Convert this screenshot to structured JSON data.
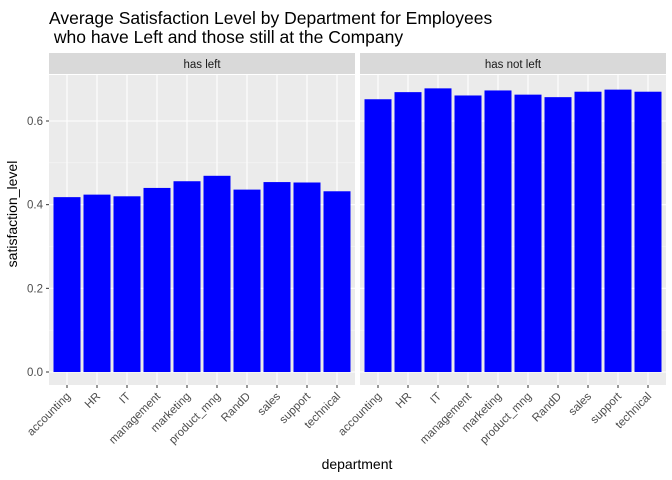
{
  "chart_data": {
    "type": "bar",
    "title": [
      "Average Satisfaction Level by Department for Employees",
      " who have Left and those still at the Company"
    ],
    "xlabel": "department",
    "ylabel": "satisfaction_level",
    "ylim": [
      0,
      0.7
    ],
    "yticks": [
      "0.0",
      "0.2",
      "0.4",
      "0.6"
    ],
    "grid": true,
    "bar_color": "#0000ff",
    "panel_background": "#ebebeb",
    "strip_background": "#d9d9d9",
    "categories": [
      "accounting",
      "HR",
      "IT",
      "management",
      "marketing",
      "product_mng",
      "RandD",
      "sales",
      "support",
      "technical"
    ],
    "panels": [
      {
        "label": "has left",
        "values": [
          0.418,
          0.424,
          0.42,
          0.44,
          0.456,
          0.469,
          0.436,
          0.454,
          0.453,
          0.432
        ]
      },
      {
        "label": "has not left",
        "values": [
          0.652,
          0.669,
          0.678,
          0.661,
          0.673,
          0.663,
          0.657,
          0.67,
          0.675,
          0.67
        ]
      }
    ]
  }
}
